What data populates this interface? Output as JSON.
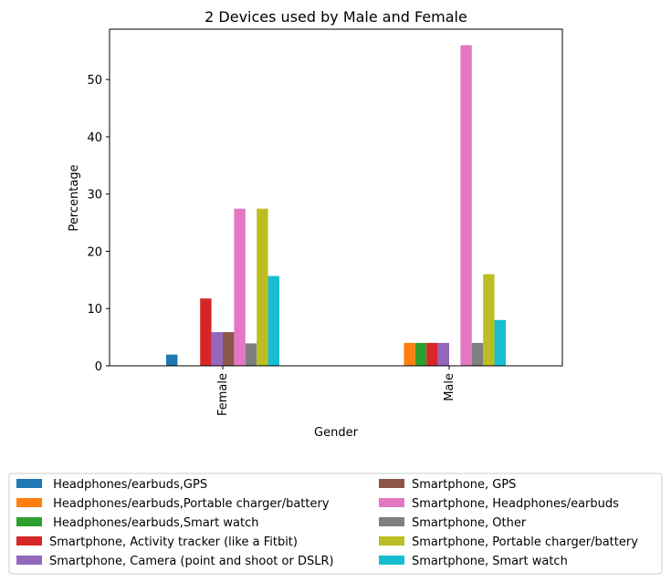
{
  "chart_data": {
    "type": "bar",
    "title": "2 Devices used by Male and Female",
    "xlabel": "Gender",
    "ylabel": "Percentage",
    "categories": [
      "Female",
      "Male"
    ],
    "ylim": [
      0,
      58.8
    ],
    "yticks": [
      0,
      10,
      20,
      30,
      40,
      50
    ],
    "grid": false,
    "legend_position": "bottom",
    "series": [
      {
        "name": " Headphones/earbuds,GPS",
        "color": "#1f77b4",
        "values": [
          1.96,
          0
        ]
      },
      {
        "name": " Headphones/earbuds,Portable charger/battery",
        "color": "#ff7f0e",
        "values": [
          0,
          4.0
        ]
      },
      {
        "name": " Headphones/earbuds,Smart watch",
        "color": "#2ca02c",
        "values": [
          0,
          4.0
        ]
      },
      {
        "name": "Smartphone, Activity tracker (like a Fitbit)",
        "color": "#d62728",
        "values": [
          11.76,
          4.0
        ]
      },
      {
        "name": "Smartphone, Camera (point and shoot or DSLR)",
        "color": "#9467bd",
        "values": [
          5.88,
          4.0
        ]
      },
      {
        "name": "Smartphone, GPS",
        "color": "#8c564b",
        "values": [
          5.88,
          0
        ]
      },
      {
        "name": "Smartphone, Headphones/earbuds",
        "color": "#e377c2",
        "values": [
          27.45,
          56.0
        ]
      },
      {
        "name": "Smartphone, Other",
        "color": "#7f7f7f",
        "values": [
          3.92,
          4.0
        ]
      },
      {
        "name": "Smartphone, Portable charger/battery",
        "color": "#bcbd22",
        "values": [
          27.45,
          16.0
        ]
      },
      {
        "name": "Smartphone, Smart watch",
        "color": "#17becf",
        "values": [
          15.69,
          8.0
        ]
      }
    ]
  }
}
